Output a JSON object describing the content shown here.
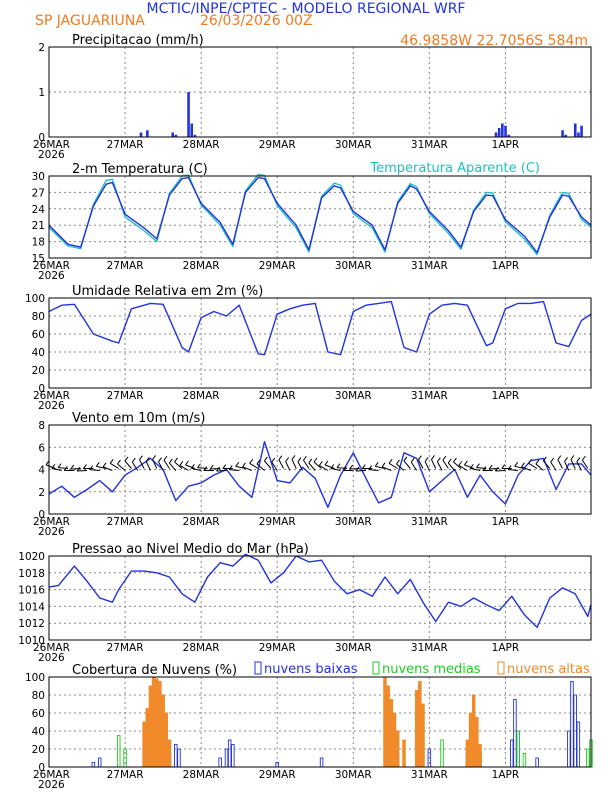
{
  "header": {
    "title": "MCTIC/INPE/CPTEC - MODELO REGIONAL WRF",
    "station": "SP JAGUARIUNA",
    "run": "26/03/2026 00Z",
    "coords": "46.9858W 22.7056S 584m"
  },
  "colors": {
    "blue": "#2233dd",
    "cyan": "#22c0c0",
    "green": "#22cc22",
    "orange": "#f08a2a",
    "title": "#2233dd",
    "sub": "#f07a22"
  },
  "dates": {
    "first": "26MAR",
    "year": "2026",
    "labels": [
      "26MAR",
      "27MAR",
      "28MAR",
      "29MAR",
      "30MAR",
      "31MAR",
      "1APR"
    ]
  },
  "chart_data": [
    {
      "type": "bar",
      "title": "Precipitacao (mm/h)",
      "ylim": [
        0,
        2
      ],
      "yticks": [
        0,
        1,
        2
      ],
      "x_unit": "hours from 26MAR 00Z",
      "x": [
        29,
        31,
        39,
        40,
        44,
        45,
        46,
        141,
        142,
        143,
        144,
        145,
        162,
        163,
        166,
        167,
        168
      ],
      "values": [
        0.1,
        0.15,
        0.1,
        0.05,
        1.0,
        0.3,
        0.05,
        0.1,
        0.2,
        0.3,
        0.25,
        0.05,
        0.15,
        0.05,
        0.3,
        0.1,
        0.25
      ]
    },
    {
      "type": "line",
      "title": "2-m Temperatura (C)",
      "legend": "Temperatura Aparente (C)",
      "ylim": [
        15,
        30
      ],
      "yticks": [
        15,
        18,
        21,
        24,
        27,
        30
      ],
      "x": [
        0,
        6,
        10,
        14,
        18,
        20,
        24,
        30,
        34,
        38,
        42,
        44,
        48,
        54,
        58,
        62,
        66,
        68,
        72,
        78,
        82,
        86,
        90,
        92,
        96,
        102,
        106,
        110,
        114,
        116,
        120,
        126,
        130,
        134,
        138,
        140,
        144,
        150,
        154,
        158,
        162,
        164,
        168,
        171
      ],
      "series": [
        {
          "name": "Temperatura (C)",
          "values": [
            21,
            17.5,
            17,
            24.5,
            28.5,
            28.8,
            23,
            20.5,
            18.5,
            26.5,
            29.5,
            29.7,
            25,
            21.5,
            17.5,
            27,
            29.7,
            29.5,
            25,
            21,
            16.5,
            26,
            28.2,
            27.8,
            23.5,
            21,
            16.5,
            25,
            28.2,
            27.6,
            23.5,
            20,
            17,
            23.5,
            26.5,
            26.4,
            22,
            19,
            16,
            22.5,
            26.5,
            26.3,
            22.5,
            21
          ]
        },
        {
          "name": "Temperatura Aparente (C)",
          "values": [
            20.6,
            17.2,
            16.7,
            24.8,
            29.2,
            29.4,
            22.5,
            20,
            18,
            26.8,
            30,
            30.2,
            24.7,
            21,
            17.1,
            27.3,
            30.3,
            30.1,
            24.6,
            20.5,
            16.1,
            26.3,
            28.7,
            28.3,
            23.1,
            20.5,
            16.1,
            25.3,
            28.6,
            28,
            23.1,
            19.5,
            16.6,
            23.8,
            27,
            26.9,
            21.6,
            18.5,
            15.6,
            22.8,
            27,
            26.8,
            22.1,
            20.6
          ]
        }
      ]
    },
    {
      "type": "line",
      "title": "Umidade Relativa em 2m (%)",
      "ylim": [
        0,
        100
      ],
      "yticks": [
        0,
        20,
        40,
        60,
        80,
        100
      ],
      "x": [
        0,
        4,
        8,
        14,
        20,
        22,
        26,
        32,
        36,
        42,
        44,
        48,
        52,
        56,
        60,
        66,
        68,
        72,
        76,
        80,
        84,
        88,
        92,
        96,
        100,
        104,
        108,
        112,
        116,
        120,
        124,
        128,
        132,
        138,
        140,
        144,
        148,
        152,
        156,
        160,
        164,
        168,
        171
      ],
      "series": [
        {
          "name": "Umidade Relativa",
          "values": [
            85,
            92,
            93,
            60,
            52,
            50,
            88,
            94,
            93,
            45,
            40,
            78,
            85,
            80,
            92,
            38,
            37,
            82,
            88,
            92,
            94,
            40,
            37,
            85,
            92,
            94,
            96,
            45,
            40,
            82,
            92,
            94,
            92,
            47,
            50,
            88,
            94,
            94,
            96,
            50,
            46,
            75,
            82
          ]
        }
      ]
    },
    {
      "type": "line",
      "title": "Vento em 10m (m/s)",
      "ylim": [
        0,
        8
      ],
      "yticks": [
        0,
        2,
        4,
        6,
        8
      ],
      "x": [
        0,
        4,
        8,
        12,
        16,
        20,
        24,
        28,
        32,
        36,
        40,
        44,
        48,
        52,
        56,
        60,
        64,
        68,
        72,
        76,
        80,
        84,
        88,
        92,
        96,
        100,
        104,
        108,
        112,
        116,
        120,
        124,
        128,
        132,
        136,
        140,
        144,
        148,
        152,
        156,
        160,
        164,
        168,
        171
      ],
      "series": [
        {
          "name": "Velocidade do vento",
          "values": [
            1.8,
            2.5,
            1.5,
            2.2,
            3.0,
            2.0,
            3.5,
            4.2,
            5.0,
            4.0,
            1.2,
            2.5,
            2.8,
            3.5,
            4.0,
            2.5,
            1.5,
            6.5,
            3.0,
            2.8,
            4.2,
            3.2,
            0.6,
            3.5,
            5.5,
            3.2,
            1.0,
            1.5,
            5.5,
            5.0,
            2.0,
            3.0,
            4.0,
            1.5,
            3.5,
            2.0,
            0.9,
            3.5,
            4.8,
            5.0,
            2.2,
            4.5,
            4.5,
            3.5
          ]
        }
      ]
    },
    {
      "type": "line",
      "title": "Pressao ao Nivel Medio do Mar (hPa)",
      "ylim": [
        1010,
        1020
      ],
      "yticks": [
        1010,
        1012,
        1014,
        1016,
        1018,
        1020
      ],
      "x": [
        0,
        3,
        8,
        12,
        16,
        20,
        22,
        26,
        30,
        34,
        38,
        42,
        46,
        50,
        54,
        58,
        62,
        66,
        70,
        74,
        78,
        82,
        86,
        90,
        94,
        98,
        102,
        106,
        110,
        114,
        118,
        122,
        126,
        130,
        134,
        138,
        142,
        146,
        150,
        154,
        158,
        162,
        166,
        170,
        171
      ],
      "series": [
        {
          "name": "Pressao (hPa)",
          "values": [
            1016.3,
            1016.5,
            1018.8,
            1017.0,
            1015.0,
            1014.5,
            1016.0,
            1018.2,
            1018.2,
            1018.0,
            1017.5,
            1015.5,
            1014.5,
            1017.5,
            1019.2,
            1018.8,
            1020.2,
            1019.5,
            1016.8,
            1018.0,
            1020.0,
            1019.3,
            1019.5,
            1017.0,
            1015.5,
            1016.0,
            1015.2,
            1017.5,
            1015.5,
            1017.2,
            1014.5,
            1012.2,
            1014.5,
            1014.0,
            1015.0,
            1014.2,
            1013.5,
            1015.2,
            1013.0,
            1011.5,
            1015.0,
            1016.2,
            1015.5,
            1012.8,
            1014.2
          ]
        }
      ]
    },
    {
      "type": "bar",
      "title": "Cobertura de Nuvens (%)",
      "ylim": [
        0,
        100
      ],
      "yticks": [
        0,
        20,
        40,
        60,
        80,
        100
      ],
      "series": [
        {
          "name": "nuvens baixas",
          "x": [
            14,
            16,
            38,
            40,
            41,
            54,
            56,
            57,
            58,
            72,
            86,
            120,
            132,
            136,
            146,
            147,
            148,
            154,
            164,
            165,
            166,
            167
          ],
          "values": [
            5,
            10,
            15,
            25,
            20,
            10,
            20,
            30,
            25,
            5,
            10,
            20,
            15,
            10,
            30,
            75,
            40,
            10,
            40,
            95,
            80,
            50
          ]
        },
        {
          "name": "nuvens medias",
          "x": [
            22,
            24,
            124,
            134,
            136,
            148,
            150,
            170,
            171
          ],
          "values": [
            35,
            20,
            30,
            20,
            15,
            40,
            15,
            20,
            30
          ]
        },
        {
          "name": "nuvens altas",
          "x": [
            30,
            31,
            32,
            33,
            34,
            35,
            36,
            37,
            38,
            106,
            107,
            108,
            109,
            110,
            112,
            116,
            117,
            118,
            132,
            133,
            134,
            135,
            136
          ],
          "values": [
            50,
            65,
            90,
            100,
            98,
            95,
            80,
            60,
            30,
            100,
            90,
            75,
            60,
            40,
            30,
            85,
            95,
            70,
            30,
            60,
            80,
            55,
            25
          ]
        }
      ]
    }
  ]
}
